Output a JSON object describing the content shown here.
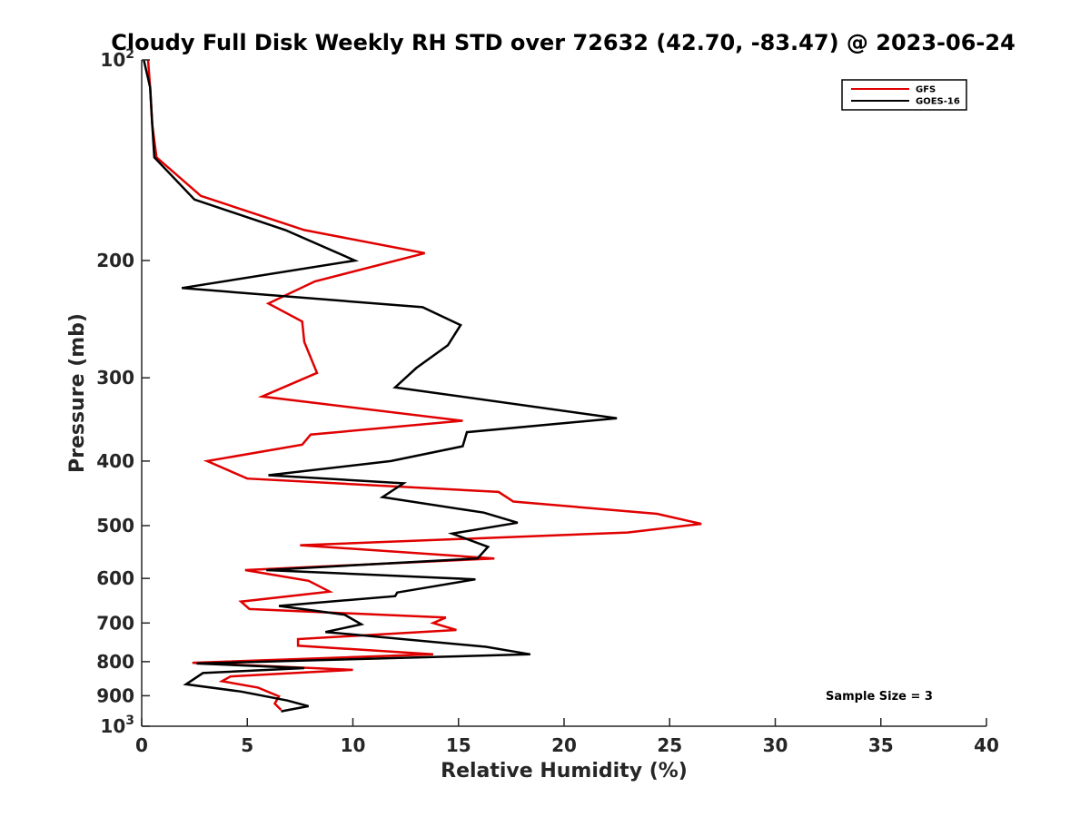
{
  "chart_data": {
    "type": "line",
    "title": "Cloudy Full Disk Weekly RH STD over 72632 (42.70, -83.47) @ 2023-06-24",
    "xlabel": "Relative Humidity (%)",
    "ylabel": "Pressure (mb)",
    "xlim": [
      0,
      40
    ],
    "ylim": [
      100,
      1000
    ],
    "y_scale": "log",
    "y_reversed": true,
    "grid": false,
    "legend_position": "top-right",
    "x_ticks": [
      {
        "value": 0,
        "label": "0"
      },
      {
        "value": 5,
        "label": "5"
      },
      {
        "value": 10,
        "label": "10"
      },
      {
        "value": 15,
        "label": "15"
      },
      {
        "value": 20,
        "label": "20"
      },
      {
        "value": 25,
        "label": "25"
      },
      {
        "value": 30,
        "label": "30"
      },
      {
        "value": 35,
        "label": "35"
      },
      {
        "value": 40,
        "label": "40"
      }
    ],
    "y_ticks": [
      {
        "value": 100,
        "label": "10",
        "sup": "2"
      },
      {
        "value": 200,
        "label": "200",
        "sup": ""
      },
      {
        "value": 300,
        "label": "300",
        "sup": ""
      },
      {
        "value": 400,
        "label": "400",
        "sup": ""
      },
      {
        "value": 500,
        "label": "500",
        "sup": ""
      },
      {
        "value": 600,
        "label": "600",
        "sup": ""
      },
      {
        "value": 700,
        "label": "700",
        "sup": ""
      },
      {
        "value": 800,
        "label": "800",
        "sup": ""
      },
      {
        "value": 900,
        "label": "900",
        "sup": ""
      },
      {
        "value": 1000,
        "label": "10",
        "sup": "3"
      }
    ],
    "annotation": "Sample Size = 3",
    "series": [
      {
        "name": "GFS",
        "color": "#e00000",
        "points": [
          [
            0.3,
            100
          ],
          [
            0.4,
            110
          ],
          [
            0.5,
            125
          ],
          [
            0.7,
            140
          ],
          [
            2.8,
            160
          ],
          [
            7.7,
            180
          ],
          [
            13.4,
            195
          ],
          [
            8.2,
            215
          ],
          [
            6.0,
            232
          ],
          [
            7.6,
            247
          ],
          [
            7.7,
            265
          ],
          [
            8.3,
            295
          ],
          [
            5.7,
            320
          ],
          [
            15.2,
            348
          ],
          [
            8.0,
            365
          ],
          [
            7.6,
            378
          ],
          [
            3.1,
            400
          ],
          [
            5.0,
            425
          ],
          [
            16.9,
            445
          ],
          [
            17.6,
            460
          ],
          [
            24.4,
            480
          ],
          [
            26.5,
            497
          ],
          [
            23.0,
            512
          ],
          [
            7.5,
            535
          ],
          [
            16.7,
            560
          ],
          [
            4.9,
            583
          ],
          [
            7.9,
            605
          ],
          [
            8.9,
            628
          ],
          [
            4.7,
            650
          ],
          [
            5.1,
            667
          ],
          [
            14.4,
            687
          ],
          [
            13.8,
            700
          ],
          [
            14.9,
            717
          ],
          [
            7.4,
            740
          ],
          [
            7.4,
            757
          ],
          [
            13.8,
            780
          ],
          [
            2.4,
            803
          ],
          [
            10.0,
            823
          ],
          [
            4.2,
            842
          ],
          [
            3.8,
            856
          ],
          [
            5.5,
            875
          ],
          [
            6.5,
            902
          ],
          [
            6.3,
            925
          ],
          [
            6.6,
            945
          ]
        ]
      },
      {
        "name": "GOES-16",
        "color": "#000000",
        "points": [
          [
            0.1,
            100
          ],
          [
            0.4,
            110
          ],
          [
            0.5,
            125
          ],
          [
            0.6,
            140
          ],
          [
            2.5,
            162
          ],
          [
            6.8,
            180
          ],
          [
            10.1,
            200
          ],
          [
            1.9,
            220
          ],
          [
            13.3,
            235
          ],
          [
            15.1,
            250
          ],
          [
            14.5,
            268
          ],
          [
            13.0,
            290
          ],
          [
            12.0,
            310
          ],
          [
            22.5,
            345
          ],
          [
            15.4,
            362
          ],
          [
            15.2,
            380
          ],
          [
            11.8,
            400
          ],
          [
            6.0,
            420
          ],
          [
            12.4,
            432
          ],
          [
            11.4,
            453
          ],
          [
            16.2,
            478
          ],
          [
            17.8,
            495
          ],
          [
            14.7,
            514
          ],
          [
            16.4,
            538
          ],
          [
            15.9,
            560
          ],
          [
            5.9,
            583
          ],
          [
            15.8,
            602
          ],
          [
            12.1,
            630
          ],
          [
            12.0,
            638
          ],
          [
            6.5,
            660
          ],
          [
            9.6,
            680
          ],
          [
            10.4,
            703
          ],
          [
            8.7,
            722
          ],
          [
            16.3,
            760
          ],
          [
            18.4,
            780
          ],
          [
            2.6,
            805
          ],
          [
            7.7,
            818
          ],
          [
            2.9,
            832
          ],
          [
            2.1,
            865
          ],
          [
            4.7,
            887
          ],
          [
            6.9,
            915
          ],
          [
            7.9,
            933
          ],
          [
            6.6,
            950
          ]
        ]
      }
    ]
  }
}
